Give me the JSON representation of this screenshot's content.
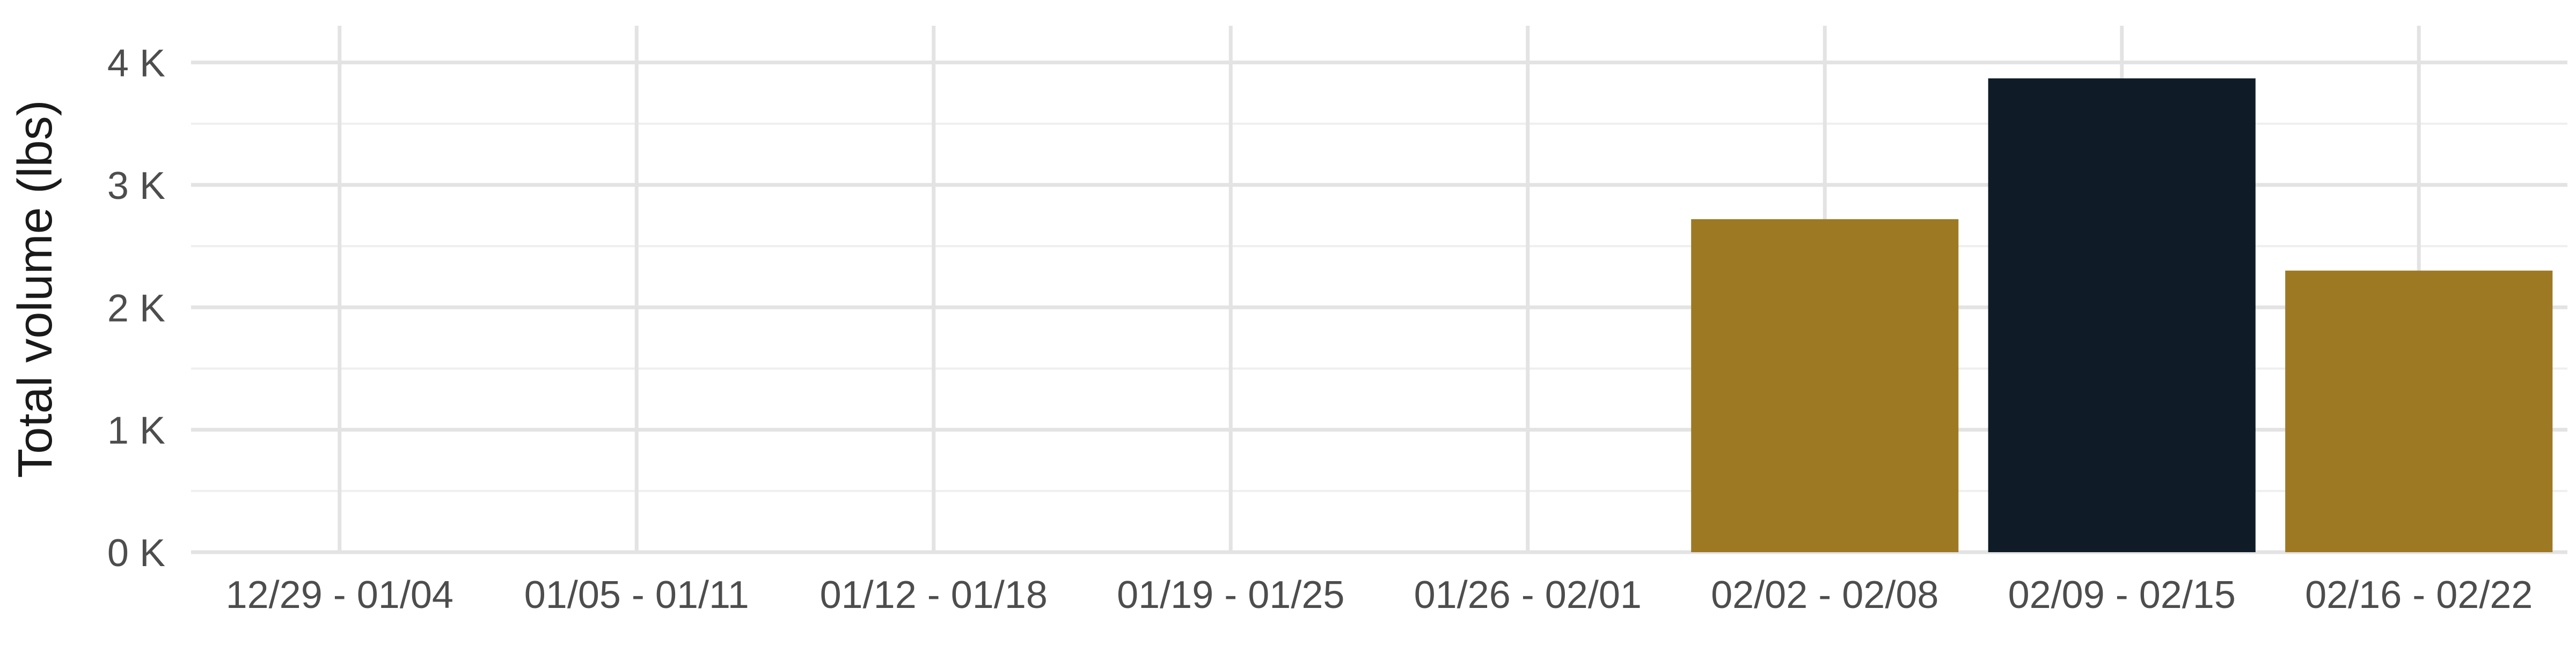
{
  "chart_data": {
    "type": "bar",
    "categories": [
      "12/29 - 01/04",
      "01/05 - 01/11",
      "01/12 - 01/18",
      "01/19 - 01/25",
      "01/26 - 02/01",
      "02/02 - 02/08",
      "02/09 - 02/15",
      "02/16 - 02/22"
    ],
    "values": [
      0,
      0,
      0,
      0,
      0,
      2720,
      3870,
      2300
    ],
    "bar_colors": [
      "#9e7924",
      "#9e7924",
      "#9e7924",
      "#9e7924",
      "#9e7924",
      "#9e7924",
      "#0f1c28",
      "#9e7924"
    ],
    "title": "",
    "xlabel": "",
    "ylabel": "Total volume (lbs)",
    "ylim": [
      0,
      4300
    ],
    "yticks": [
      0,
      1000,
      2000,
      3000,
      4000
    ],
    "ytick_labels": [
      "0 K",
      "1 K",
      "2 K",
      "3 K",
      "4 K"
    ],
    "grid": true,
    "colors": {
      "gold": "#9e7924",
      "navy": "#0f1c28",
      "grid_major": "#e3e3e3",
      "grid_minor": "#efefef",
      "text": "#4d4d4d",
      "axis_title": "#1a1a1a"
    }
  }
}
